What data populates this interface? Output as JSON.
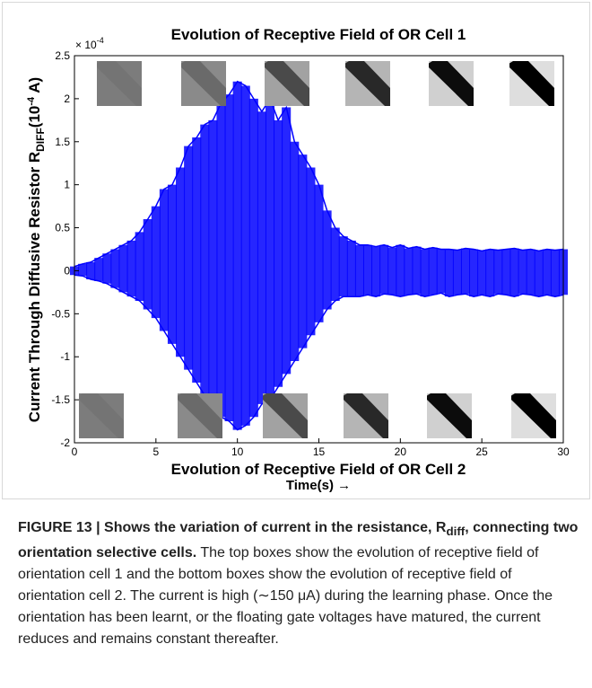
{
  "chart_data": {
    "type": "envelope",
    "title": "Evolution of Receptive Field of OR Cell 1",
    "xlabel": "Evolution of Receptive Field of OR Cell 2",
    "xlabel2": "Time(s) →",
    "ylabel": {
      "main": "Current Through Diffusive Resistor R",
      "sub": "DIFF",
      "unit_open": "(10",
      "unit_exp": "-4",
      "unit_close": " A)"
    },
    "y_multiplier": {
      "base": "× 10",
      "exponent": "-4"
    },
    "x": [
      0,
      0.5,
      1,
      1.5,
      2,
      2.5,
      3,
      3.5,
      4,
      4.5,
      5,
      5.5,
      6,
      6.5,
      7,
      7.5,
      8,
      8.5,
      9,
      9.5,
      10,
      10.5,
      11,
      11.5,
      12,
      12.5,
      13,
      13.5,
      14,
      14.5,
      15,
      15.5,
      16,
      16.5,
      17,
      17.5,
      18,
      18.5,
      19,
      19.5,
      20,
      20.5,
      21,
      21.5,
      22,
      22.5,
      23,
      23.5,
      24,
      24.5,
      25,
      25.5,
      26,
      26.5,
      27,
      27.5,
      28,
      28.5,
      29,
      29.5,
      30
    ],
    "series": [
      {
        "color": "#0000ff",
        "values": [
          0.05,
          0.08,
          0.1,
          0.15,
          0.2,
          0.25,
          0.3,
          0.35,
          0.45,
          0.6,
          0.75,
          0.95,
          1.0,
          1.2,
          1.45,
          1.55,
          1.7,
          1.75,
          1.95,
          2.05,
          2.2,
          2.15,
          2.0,
          1.85,
          2.0,
          1.75,
          1.9,
          1.5,
          1.35,
          1.2,
          1.0,
          0.7,
          0.5,
          0.4,
          0.35,
          0.3,
          0.3,
          0.28,
          0.3,
          0.27,
          0.3,
          0.26,
          0.28,
          0.25,
          0.27,
          0.25,
          0.25,
          0.24,
          0.26,
          0.25,
          0.23,
          0.25,
          0.24,
          0.25,
          0.26,
          0.24,
          0.25,
          0.23,
          0.25,
          0.24,
          0.25
        ]
      },
      {
        "color": "#0000ff",
        "values": [
          -0.05,
          -0.06,
          -0.1,
          -0.12,
          -0.15,
          -0.2,
          -0.25,
          -0.3,
          -0.35,
          -0.45,
          -0.55,
          -0.7,
          -0.85,
          -1.0,
          -1.15,
          -1.3,
          -1.45,
          -1.6,
          -1.7,
          -1.75,
          -1.85,
          -1.8,
          -1.7,
          -1.55,
          -1.5,
          -1.35,
          -1.2,
          -1.05,
          -0.9,
          -0.75,
          -0.6,
          -0.45,
          -0.35,
          -0.3,
          -0.3,
          -0.3,
          -0.28,
          -0.3,
          -0.27,
          -0.28,
          -0.3,
          -0.28,
          -0.27,
          -0.3,
          -0.28,
          -0.26,
          -0.3,
          -0.28,
          -0.27,
          -0.3,
          -0.28,
          -0.3,
          -0.27,
          -0.28,
          -0.3,
          -0.27,
          -0.28,
          -0.3,
          -0.28,
          -0.3,
          -0.28
        ]
      }
    ],
    "xlim": [
      0,
      30
    ],
    "xticks": [
      0,
      5,
      10,
      15,
      20,
      25,
      30
    ],
    "ylim": [
      -2,
      2.5
    ],
    "yticks": [
      -2,
      -1.5,
      -1,
      -0.5,
      0,
      0.5,
      1,
      1.5,
      2,
      2.5
    ]
  },
  "caption": {
    "lead": "FIGURE 13 | Shows the variation of current in the resistance, R",
    "lead_sub": "diff",
    "lead_end": ", connecting two orientation selective cells.",
    "body": " The top boxes show the evolution of receptive field of orientation cell 1 and the bottom boxes show the evolution of receptive field of orientation cell 2. The current is high (∼150 μA) during the learning phase. Once the orientation has been learnt, or the floating gate voltages have matured, the current reduces and remains constant thereafter."
  }
}
